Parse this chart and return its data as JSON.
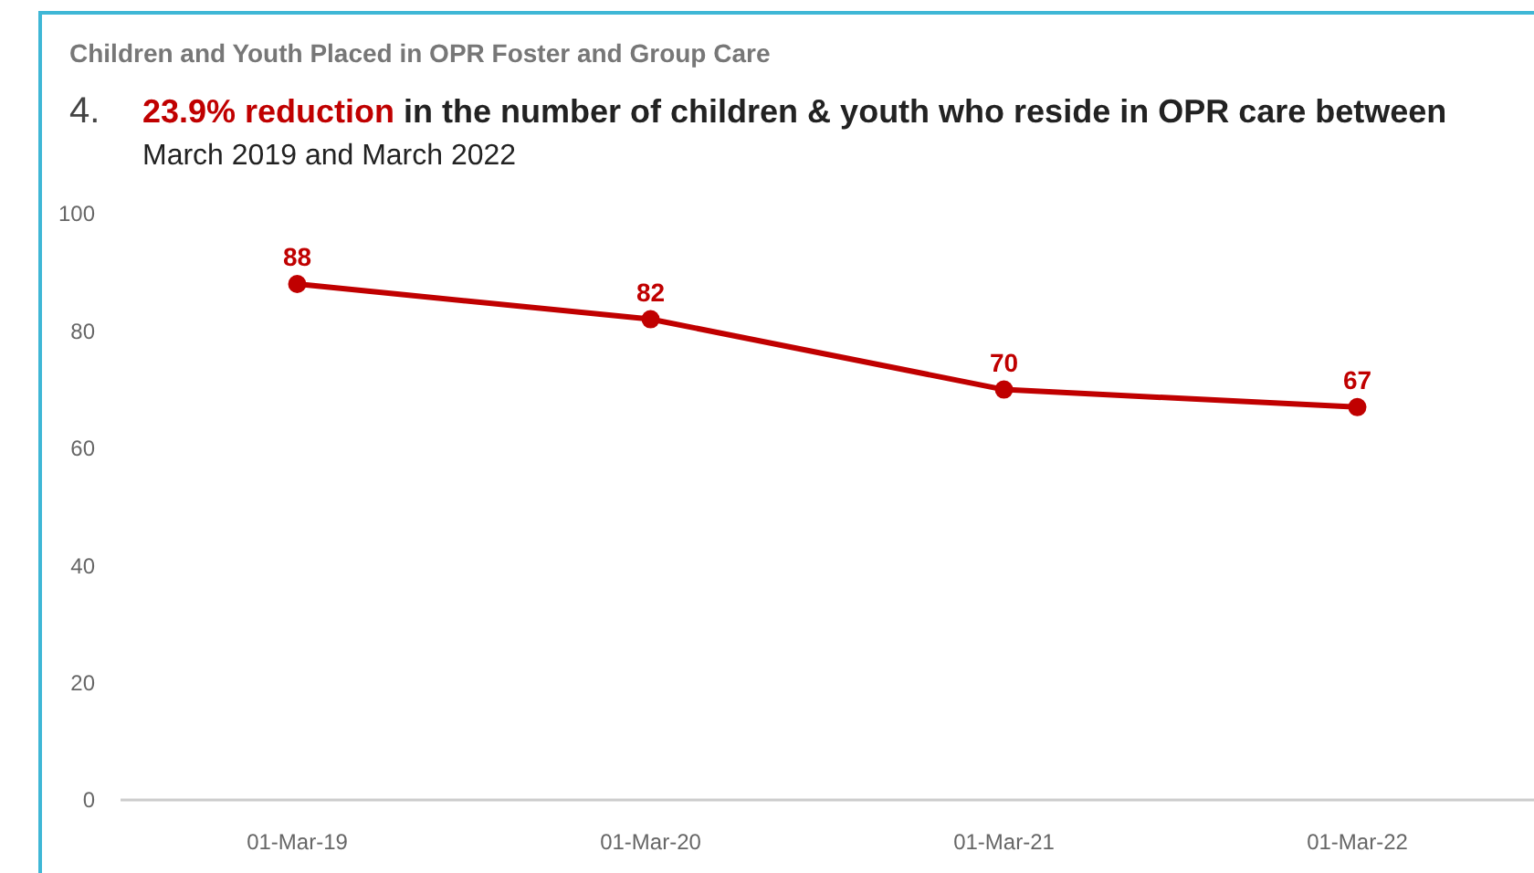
{
  "chart_data": {
    "type": "line",
    "title": "Children and Youth Placed in OPR Foster and Group Care",
    "subtitle": "23.9% reduction in the number of children & youth who reside in OPR care between March 2019 and March 2022",
    "annotations": [
      "4."
    ],
    "categories": [
      "01-Mar-19",
      "01-Mar-20",
      "01-Mar-21",
      "01-Mar-22"
    ],
    "series": [
      {
        "color": "#c00000",
        "values": [
          88,
          82,
          70,
          67
        ]
      }
    ],
    "ylim": [
      0,
      100
    ],
    "yticks": [
      0,
      20,
      40,
      60,
      80,
      100
    ],
    "grid": false,
    "marker": "circle",
    "line_style": "solid",
    "data_labels": true
  }
}
